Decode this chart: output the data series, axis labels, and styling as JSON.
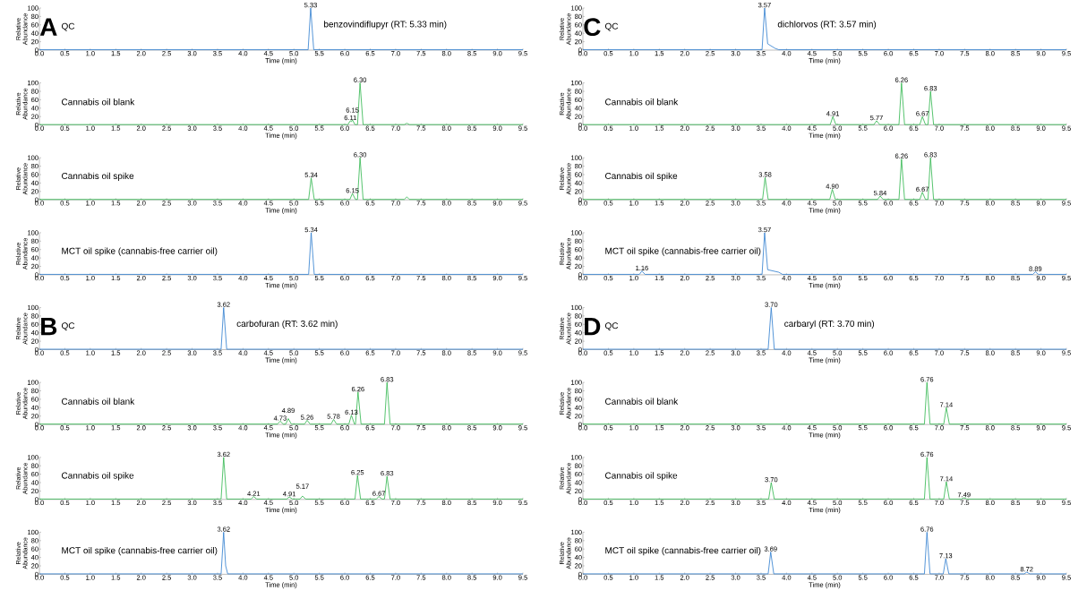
{
  "chart_data": [
    {
      "type": "line",
      "title": "QC",
      "xlabel": "Time (min)",
      "ylabel": "Relative Abundance",
      "color": "#2b7bce",
      "x": [
        0,
        5.28,
        5.33,
        5.39,
        9.5
      ],
      "values": [
        1,
        1,
        100,
        1,
        1
      ],
      "annotations": [
        "A",
        "benzovindiflupyr (RT: 5.33 min)",
        {
          "text": "5.33",
          "x": 5.33,
          "y": 100
        }
      ],
      "xlim": [
        0,
        9.5
      ],
      "ylim": [
        0,
        100
      ],
      "yticks": [
        0,
        20,
        40,
        60,
        80,
        100
      ],
      "xticks": [
        {
          "value": 0,
          "label": "0.0"
        },
        {
          "value": 0.5,
          "label": "0.5"
        },
        {
          "value": 1,
          "label": "1.0"
        },
        {
          "value": 1.5,
          "label": "1.5"
        },
        {
          "value": 2,
          "label": "2.0"
        },
        {
          "value": 2.5,
          "label": "2.5"
        },
        {
          "value": 3,
          "label": "3.0"
        },
        {
          "value": 3.5,
          "label": "3.5"
        },
        {
          "value": 4,
          "label": "4.0"
        },
        {
          "value": 4.5,
          "label": "4.5"
        },
        {
          "value": 5,
          "label": "5.0"
        },
        {
          "value": 5.5,
          "label": "5.5"
        },
        {
          "value": 6,
          "label": "6.0"
        },
        {
          "value": 6.5,
          "label": "6.5"
        },
        {
          "value": 7,
          "label": "7.0"
        },
        {
          "value": 7.5,
          "label": "7.5"
        },
        {
          "value": 8,
          "label": "8.0"
        },
        {
          "value": 8.5,
          "label": "8.5"
        },
        {
          "value": 9,
          "label": "9.0"
        },
        {
          "value": 9.5,
          "label": "9.5"
        }
      ]
    },
    {
      "type": "line",
      "title": "Cannabis oil blank",
      "xlabel": "Time (min)",
      "ylabel": "Relative Abundance",
      "color": "#2cb54a",
      "x": [
        0,
        6.06,
        6.11,
        6.13,
        6.15,
        6.2,
        6.25,
        6.3,
        6.36,
        7.17,
        7.22,
        7.27,
        9.5
      ],
      "values": [
        1,
        1,
        10,
        8,
        12,
        1,
        1,
        100,
        1,
        1,
        4,
        1,
        1
      ],
      "annotations": [
        {
          "text": "6.11",
          "x": 6.11,
          "y": 10
        },
        {
          "text": "6.15",
          "x": 6.15,
          "y": 12
        },
        {
          "text": "6.30",
          "x": 6.3,
          "y": 100
        }
      ],
      "xlim": [
        0,
        9.5
      ],
      "ylim": [
        0,
        100
      ],
      "yticks": [
        0,
        20,
        40,
        60,
        80,
        100
      ],
      "xticks": [
        {
          "value": 0,
          "label": "0.0"
        },
        {
          "value": 0.5,
          "label": "0.5"
        },
        {
          "value": 1,
          "label": "1.0"
        },
        {
          "value": 1.5,
          "label": "1.5"
        },
        {
          "value": 2,
          "label": "2.0"
        },
        {
          "value": 2.5,
          "label": "2.5"
        },
        {
          "value": 3,
          "label": "3.0"
        },
        {
          "value": 3.5,
          "label": "3.5"
        },
        {
          "value": 4,
          "label": "4.0"
        },
        {
          "value": 4.5,
          "label": "4.5"
        },
        {
          "value": 5,
          "label": "5.0"
        },
        {
          "value": 5.5,
          "label": "5.5"
        },
        {
          "value": 6,
          "label": "6.0"
        },
        {
          "value": 6.5,
          "label": "6.5"
        },
        {
          "value": 7,
          "label": "7.0"
        },
        {
          "value": 7.5,
          "label": "7.5"
        },
        {
          "value": 8,
          "label": "8.0"
        },
        {
          "value": 8.5,
          "label": "8.5"
        },
        {
          "value": 9,
          "label": "9.0"
        },
        {
          "value": 9.5,
          "label": "9.5"
        }
      ]
    },
    {
      "type": "line",
      "title": "Cannabis oil spike",
      "xlabel": "Time (min)",
      "ylabel": "Relative Abundance",
      "color": "#2cb54a",
      "x": [
        0,
        5.29,
        5.34,
        5.4,
        6.1,
        6.15,
        6.21,
        6.25,
        6.3,
        6.36,
        7.17,
        7.22,
        7.27,
        9.5
      ],
      "values": [
        1,
        1,
        52,
        1,
        1,
        15,
        1,
        1,
        100,
        1,
        1,
        7,
        1,
        1
      ],
      "annotations": [
        {
          "text": "5.34",
          "x": 5.34,
          "y": 52
        },
        {
          "text": "6.15",
          "x": 6.15,
          "y": 15
        },
        {
          "text": "6.30",
          "x": 6.3,
          "y": 100
        }
      ],
      "xlim": [
        0,
        9.5
      ],
      "ylim": [
        0,
        100
      ],
      "yticks": [
        0,
        20,
        40,
        60,
        80,
        100
      ],
      "xticks": [
        {
          "value": 0,
          "label": "0.0"
        },
        {
          "value": 0.5,
          "label": "0.5"
        },
        {
          "value": 1,
          "label": "1.0"
        },
        {
          "value": 1.5,
          "label": "1.5"
        },
        {
          "value": 2,
          "label": "2.0"
        },
        {
          "value": 2.5,
          "label": "2.5"
        },
        {
          "value": 3,
          "label": "3.0"
        },
        {
          "value": 3.5,
          "label": "3.5"
        },
        {
          "value": 4,
          "label": "4.0"
        },
        {
          "value": 4.5,
          "label": "4.5"
        },
        {
          "value": 5,
          "label": "5.0"
        },
        {
          "value": 5.5,
          "label": "5.5"
        },
        {
          "value": 6,
          "label": "6.0"
        },
        {
          "value": 6.5,
          "label": "6.5"
        },
        {
          "value": 7,
          "label": "7.0"
        },
        {
          "value": 7.5,
          "label": "7.5"
        },
        {
          "value": 8,
          "label": "8.0"
        },
        {
          "value": 8.5,
          "label": "8.5"
        },
        {
          "value": 9,
          "label": "9.0"
        },
        {
          "value": 9.5,
          "label": "9.5"
        }
      ]
    },
    {
      "type": "line",
      "title": "MCT oil spike (cannabis-free carrier oil)",
      "xlabel": "Time (min)",
      "ylabel": "Relative Abundance",
      "color": "#2b7bce",
      "x": [
        0,
        5.29,
        5.34,
        5.4,
        9.5
      ],
      "values": [
        1,
        1,
        100,
        1,
        1
      ],
      "annotations": [
        {
          "text": "5.34",
          "x": 5.34,
          "y": 100
        }
      ],
      "xlim": [
        0,
        9.5
      ],
      "ylim": [
        0,
        100
      ],
      "yticks": [
        0,
        20,
        40,
        60,
        80,
        100
      ],
      "xticks": [
        {
          "value": 0,
          "label": "0.0"
        },
        {
          "value": 0.5,
          "label": "0.5"
        },
        {
          "value": 1,
          "label": "1.0"
        },
        {
          "value": 1.5,
          "label": "1.5"
        },
        {
          "value": 2,
          "label": "2.0"
        },
        {
          "value": 2.5,
          "label": "2.5"
        },
        {
          "value": 3,
          "label": "3.0"
        },
        {
          "value": 3.5,
          "label": "3.5"
        },
        {
          "value": 4,
          "label": "4.0"
        },
        {
          "value": 4.5,
          "label": "4.5"
        },
        {
          "value": 5,
          "label": "5.0"
        },
        {
          "value": 5.5,
          "label": "5.5"
        },
        {
          "value": 6,
          "label": "6.0"
        },
        {
          "value": 6.5,
          "label": "6.5"
        },
        {
          "value": 7,
          "label": "7.0"
        },
        {
          "value": 7.5,
          "label": "7.5"
        },
        {
          "value": 8,
          "label": "8.0"
        },
        {
          "value": 8.5,
          "label": "8.5"
        },
        {
          "value": 9,
          "label": "9.0"
        },
        {
          "value": 9.5,
          "label": "9.5"
        }
      ]
    },
    {
      "type": "line",
      "title": "QC",
      "xlabel": "Time (min)",
      "ylabel": "Relative Abundance",
      "color": "#2b7bce",
      "x": [
        0,
        3.57,
        3.62,
        3.68,
        9.5
      ],
      "values": [
        1,
        1,
        100,
        1,
        1
      ],
      "annotations": [
        "B",
        "carbofuran (RT: 3.62 min)",
        {
          "text": "3.62",
          "x": 3.62,
          "y": 100
        }
      ],
      "xlim": [
        0,
        9.5
      ],
      "ylim": [
        0,
        100
      ],
      "yticks": [
        0,
        20,
        40,
        60,
        80,
        100
      ],
      "xticks": [
        {
          "value": 0,
          "label": "0.0"
        },
        {
          "value": 0.5,
          "label": "0.5"
        },
        {
          "value": 1,
          "label": "1.0"
        },
        {
          "value": 1.5,
          "label": "1.5"
        },
        {
          "value": 2,
          "label": "2.0"
        },
        {
          "value": 2.5,
          "label": "2.5"
        },
        {
          "value": 3,
          "label": "3.0"
        },
        {
          "value": 3.5,
          "label": "3.5"
        },
        {
          "value": 4,
          "label": "4.0"
        },
        {
          "value": 4.5,
          "label": "4.5"
        },
        {
          "value": 5,
          "label": "5.0"
        },
        {
          "value": 5.5,
          "label": "5.5"
        },
        {
          "value": 6,
          "label": "6.0"
        },
        {
          "value": 6.5,
          "label": "6.5"
        },
        {
          "value": 7,
          "label": "7.0"
        },
        {
          "value": 7.5,
          "label": "7.5"
        },
        {
          "value": 8,
          "label": "8.0"
        },
        {
          "value": 8.5,
          "label": "8.5"
        },
        {
          "value": 9,
          "label": "9.0"
        },
        {
          "value": 9.5,
          "label": "9.5"
        }
      ]
    },
    {
      "type": "line",
      "title": "Cannabis oil blank",
      "xlabel": "Time (min)",
      "ylabel": "Relative Abundance",
      "color": "#2cb54a",
      "x": [
        0,
        4.68,
        4.73,
        4.79,
        4.84,
        4.89,
        4.95,
        5.21,
        5.26,
        5.32,
        5.73,
        5.78,
        5.84,
        6.08,
        6.13,
        6.19,
        6.21,
        6.26,
        6.32,
        6.78,
        6.83,
        6.89,
        9.5
      ],
      "values": [
        1,
        1,
        8,
        1,
        1,
        14,
        1,
        1,
        10,
        1,
        1,
        12,
        1,
        1,
        22,
        1,
        1,
        77,
        1,
        1,
        100,
        1,
        1
      ],
      "annotations": [
        {
          "text": "4.73",
          "x": 4.73,
          "y": 8
        },
        {
          "text": "4.89",
          "x": 4.89,
          "y": 14
        },
        {
          "text": "5.26",
          "x": 5.26,
          "y": 10
        },
        {
          "text": "5.78",
          "x": 5.78,
          "y": 12
        },
        {
          "text": "6.13",
          "x": 6.13,
          "y": 22
        },
        {
          "text": "6.26",
          "x": 6.26,
          "y": 77
        },
        {
          "text": "6.83",
          "x": 6.83,
          "y": 100
        }
      ],
      "xlim": [
        0,
        9.5
      ],
      "ylim": [
        0,
        100
      ],
      "yticks": [
        0,
        20,
        40,
        60,
        80,
        100
      ],
      "xticks": [
        {
          "value": 0,
          "label": "0.0"
        },
        {
          "value": 0.5,
          "label": "0.5"
        },
        {
          "value": 1,
          "label": "1.0"
        },
        {
          "value": 1.5,
          "label": "1.5"
        },
        {
          "value": 2,
          "label": "2.0"
        },
        {
          "value": 2.5,
          "label": "2.5"
        },
        {
          "value": 3,
          "label": "3.0"
        },
        {
          "value": 3.5,
          "label": "3.5"
        },
        {
          "value": 4,
          "label": "4.0"
        },
        {
          "value": 4.5,
          "label": "4.5"
        },
        {
          "value": 5,
          "label": "5.0"
        },
        {
          "value": 5.5,
          "label": "5.5"
        },
        {
          "value": 6,
          "label": "6.0"
        },
        {
          "value": 6.5,
          "label": "6.5"
        },
        {
          "value": 7,
          "label": "7.0"
        },
        {
          "value": 7.5,
          "label": "7.5"
        },
        {
          "value": 8,
          "label": "8.0"
        },
        {
          "value": 8.5,
          "label": "8.5"
        },
        {
          "value": 9,
          "label": "9.0"
        },
        {
          "value": 9.5,
          "label": "9.5"
        }
      ]
    },
    {
      "type": "line",
      "title": "Cannabis oil spike",
      "xlabel": "Time (min)",
      "ylabel": "Relative Abundance",
      "color": "#2cb54a",
      "x": [
        0,
        3.57,
        3.62,
        3.68,
        4.16,
        4.21,
        4.27,
        4.86,
        4.91,
        4.97,
        5.12,
        5.17,
        5.23,
        6.2,
        6.25,
        6.31,
        6.62,
        6.67,
        6.73,
        6.78,
        6.83,
        6.89,
        9.5
      ],
      "values": [
        1,
        1,
        100,
        1,
        1,
        7,
        1,
        1,
        6,
        1,
        1,
        8,
        1,
        1,
        57,
        1,
        1,
        7,
        1,
        1,
        55,
        1,
        1
      ],
      "annotations": [
        {
          "text": "3.62",
          "x": 3.62,
          "y": 100
        },
        {
          "text": "4.21",
          "x": 4.21,
          "y": 7
        },
        {
          "text": "4.91",
          "x": 4.91,
          "y": 6
        },
        {
          "text": "5.17",
          "x": 5.17,
          "y": 8
        },
        {
          "text": "6.25",
          "x": 6.25,
          "y": 57
        },
        {
          "text": "6.67",
          "x": 6.67,
          "y": 7
        },
        {
          "text": "6.83",
          "x": 6.83,
          "y": 55
        }
      ],
      "xlim": [
        0,
        9.5
      ],
      "ylim": [
        0,
        100
      ],
      "yticks": [
        0,
        20,
        40,
        60,
        80,
        100
      ],
      "xticks": [
        {
          "value": 0,
          "label": "0.0"
        },
        {
          "value": 0.5,
          "label": "0.5"
        },
        {
          "value": 1,
          "label": "1.0"
        },
        {
          "value": 1.5,
          "label": "1.5"
        },
        {
          "value": 2,
          "label": "2.0"
        },
        {
          "value": 2.5,
          "label": "2.5"
        },
        {
          "value": 3,
          "label": "3.0"
        },
        {
          "value": 3.5,
          "label": "3.5"
        },
        {
          "value": 4,
          "label": "4.0"
        },
        {
          "value": 4.5,
          "label": "4.5"
        },
        {
          "value": 5,
          "label": "5.0"
        },
        {
          "value": 5.5,
          "label": "5.5"
        },
        {
          "value": 6,
          "label": "6.0"
        },
        {
          "value": 6.5,
          "label": "6.5"
        },
        {
          "value": 7,
          "label": "7.0"
        },
        {
          "value": 7.5,
          "label": "7.5"
        },
        {
          "value": 8,
          "label": "8.0"
        },
        {
          "value": 8.5,
          "label": "8.5"
        },
        {
          "value": 9,
          "label": "9.0"
        },
        {
          "value": 9.5,
          "label": "9.5"
        }
      ]
    },
    {
      "type": "line",
      "title": "MCT oil spike (cannabis-free carrier oil)",
      "xlabel": "Time (min)",
      "ylabel": "Relative Abundance",
      "color": "#2b7bce",
      "x": [
        0,
        3.57,
        3.62,
        3.66,
        3.7,
        9.5
      ],
      "values": [
        1,
        1,
        100,
        20,
        1,
        1
      ],
      "annotations": [
        {
          "text": "3.62",
          "x": 3.62,
          "y": 100
        }
      ],
      "xlim": [
        0,
        9.5
      ],
      "ylim": [
        0,
        100
      ],
      "yticks": [
        0,
        20,
        40,
        60,
        80,
        100
      ],
      "xticks": [
        {
          "value": 0,
          "label": "0.0"
        },
        {
          "value": 0.5,
          "label": "0.5"
        },
        {
          "value": 1,
          "label": "1.0"
        },
        {
          "value": 1.5,
          "label": "1.5"
        },
        {
          "value": 2,
          "label": "2.0"
        },
        {
          "value": 2.5,
          "label": "2.5"
        },
        {
          "value": 3,
          "label": "3.0"
        },
        {
          "value": 3.5,
          "label": "3.5"
        },
        {
          "value": 4,
          "label": "4.0"
        },
        {
          "value": 4.5,
          "label": "4.5"
        },
        {
          "value": 5,
          "label": "5.0"
        },
        {
          "value": 5.5,
          "label": "5.5"
        },
        {
          "value": 6,
          "label": "6.0"
        },
        {
          "value": 6.5,
          "label": "6.5"
        },
        {
          "value": 7,
          "label": "7.0"
        },
        {
          "value": 7.5,
          "label": "7.5"
        },
        {
          "value": 8,
          "label": "8.0"
        },
        {
          "value": 8.5,
          "label": "8.5"
        },
        {
          "value": 9,
          "label": "9.0"
        },
        {
          "value": 9.5,
          "label": "9.5"
        }
      ]
    },
    {
      "type": "line",
      "title": "QC",
      "xlabel": "Time (min)",
      "ylabel": "Relative Abundance",
      "color": "#2b7bce",
      "x": [
        0,
        3.52,
        3.57,
        3.63,
        3.78,
        3.85,
        9.5
      ],
      "values": [
        1,
        1,
        100,
        15,
        4,
        1,
        1
      ],
      "annotations": [
        "C",
        "dichlorvos (RT: 3.57 min)",
        {
          "text": "3.57",
          "x": 3.57,
          "y": 100
        }
      ],
      "xlim": [
        0,
        9.5
      ],
      "ylim": [
        0,
        100
      ],
      "yticks": [
        0,
        20,
        40,
        60,
        80,
        100
      ],
      "xticks": [
        {
          "value": 0,
          "label": "0.0"
        },
        {
          "value": 0.5,
          "label": "0.5"
        },
        {
          "value": 1,
          "label": "1.0"
        },
        {
          "value": 1.5,
          "label": "1.5"
        },
        {
          "value": 2,
          "label": "2.0"
        },
        {
          "value": 2.5,
          "label": "2.5"
        },
        {
          "value": 3,
          "label": "3.0"
        },
        {
          "value": 3.5,
          "label": "3.5"
        },
        {
          "value": 4,
          "label": "4.0"
        },
        {
          "value": 4.5,
          "label": "4.5"
        },
        {
          "value": 5,
          "label": "5.0"
        },
        {
          "value": 5.5,
          "label": "5.5"
        },
        {
          "value": 6,
          "label": "6.0"
        },
        {
          "value": 6.5,
          "label": "6.5"
        },
        {
          "value": 7,
          "label": "7.0"
        },
        {
          "value": 7.5,
          "label": "7.5"
        },
        {
          "value": 8,
          "label": "8.0"
        },
        {
          "value": 8.5,
          "label": "8.5"
        },
        {
          "value": 9,
          "label": "9.0"
        },
        {
          "value": 9.5,
          "label": "9.5"
        }
      ]
    },
    {
      "type": "line",
      "title": "Cannabis oil blank",
      "xlabel": "Time (min)",
      "ylabel": "Relative Abundance",
      "color": "#2cb54a",
      "x": [
        0,
        4.86,
        4.91,
        4.97,
        5.72,
        5.77,
        5.83,
        6.21,
        6.26,
        6.32,
        6.62,
        6.67,
        6.73,
        6.78,
        6.83,
        6.89,
        9.5
      ],
      "values": [
        1,
        1,
        20,
        1,
        1,
        10,
        1,
        1,
        100,
        1,
        1,
        20,
        1,
        1,
        80,
        1,
        1
      ],
      "annotations": [
        {
          "text": "4.91",
          "x": 4.91,
          "y": 20
        },
        {
          "text": "5.77",
          "x": 5.77,
          "y": 10
        },
        {
          "text": "6.26",
          "x": 6.26,
          "y": 100
        },
        {
          "text": "6.67",
          "x": 6.67,
          "y": 20
        },
        {
          "text": "6.83",
          "x": 6.83,
          "y": 80
        }
      ],
      "xlim": [
        0,
        9.5
      ],
      "ylim": [
        0,
        100
      ],
      "yticks": [
        0,
        20,
        40,
        60,
        80,
        100
      ],
      "xticks": [
        {
          "value": 0,
          "label": "0.0"
        },
        {
          "value": 0.5,
          "label": "0.5"
        },
        {
          "value": 1,
          "label": "1.0"
        },
        {
          "value": 1.5,
          "label": "1.5"
        },
        {
          "value": 2,
          "label": "2.0"
        },
        {
          "value": 2.5,
          "label": "2.5"
        },
        {
          "value": 3,
          "label": "3.0"
        },
        {
          "value": 3.5,
          "label": "3.5"
        },
        {
          "value": 4,
          "label": "4.0"
        },
        {
          "value": 4.5,
          "label": "4.5"
        },
        {
          "value": 5,
          "label": "5.0"
        },
        {
          "value": 5.5,
          "label": "5.5"
        },
        {
          "value": 6,
          "label": "6.0"
        },
        {
          "value": 6.5,
          "label": "6.5"
        },
        {
          "value": 7,
          "label": "7.0"
        },
        {
          "value": 7.5,
          "label": "7.5"
        },
        {
          "value": 8,
          "label": "8.0"
        },
        {
          "value": 8.5,
          "label": "8.5"
        },
        {
          "value": 9,
          "label": "9.0"
        },
        {
          "value": 9.5,
          "label": "9.5"
        }
      ]
    },
    {
      "type": "line",
      "title": "Cannabis oil spike",
      "xlabel": "Time (min)",
      "ylabel": "Relative Abundance",
      "color": "#2cb54a",
      "x": [
        0,
        3.53,
        3.58,
        3.64,
        4.85,
        4.9,
        4.96,
        5.79,
        5.84,
        5.9,
        6.21,
        6.26,
        6.32,
        6.62,
        6.67,
        6.73,
        6.78,
        6.83,
        6.89,
        9.5
      ],
      "values": [
        1,
        1,
        53,
        1,
        1,
        25,
        1,
        1,
        9,
        1,
        1,
        97,
        1,
        1,
        18,
        1,
        1,
        100,
        1,
        1
      ],
      "annotations": [
        {
          "text": "3.58",
          "x": 3.58,
          "y": 53
        },
        {
          "text": "4.90",
          "x": 4.9,
          "y": 25
        },
        {
          "text": "5.84",
          "x": 5.84,
          "y": 9
        },
        {
          "text": "6.26",
          "x": 6.26,
          "y": 97
        },
        {
          "text": "6.67",
          "x": 6.67,
          "y": 18
        },
        {
          "text": "6.83",
          "x": 6.83,
          "y": 100
        }
      ],
      "xlim": [
        0,
        9.5
      ],
      "ylim": [
        0,
        100
      ],
      "yticks": [
        0,
        20,
        40,
        60,
        80,
        100
      ],
      "xticks": [
        {
          "value": 0,
          "label": "0.0"
        },
        {
          "value": 0.5,
          "label": "0.5"
        },
        {
          "value": 1,
          "label": "1.0"
        },
        {
          "value": 1.5,
          "label": "1.5"
        },
        {
          "value": 2,
          "label": "2.0"
        },
        {
          "value": 2.5,
          "label": "2.5"
        },
        {
          "value": 3,
          "label": "3.0"
        },
        {
          "value": 3.5,
          "label": "3.5"
        },
        {
          "value": 4,
          "label": "4.0"
        },
        {
          "value": 4.5,
          "label": "4.5"
        },
        {
          "value": 5,
          "label": "5.0"
        },
        {
          "value": 5.5,
          "label": "5.5"
        },
        {
          "value": 6,
          "label": "6.0"
        },
        {
          "value": 6.5,
          "label": "6.5"
        },
        {
          "value": 7,
          "label": "7.0"
        },
        {
          "value": 7.5,
          "label": "7.5"
        },
        {
          "value": 8,
          "label": "8.0"
        },
        {
          "value": 8.5,
          "label": "8.5"
        },
        {
          "value": 9,
          "label": "9.0"
        },
        {
          "value": 9.5,
          "label": "9.5"
        }
      ]
    },
    {
      "type": "line",
      "title": "MCT oil spike (cannabis-free carrier oil)",
      "xlabel": "Time (min)",
      "ylabel": "Relative Abundance",
      "color": "#2b7bce",
      "x": [
        0,
        1.11,
        1.16,
        1.22,
        3.52,
        3.57,
        3.63,
        3.85,
        3.92,
        8.84,
        8.89,
        8.95,
        9.5
      ],
      "values": [
        1,
        1,
        9,
        1,
        1,
        100,
        12,
        6,
        1,
        1,
        7,
        1,
        1
      ],
      "annotations": [
        {
          "text": "1.16",
          "x": 1.16,
          "y": 9
        },
        {
          "text": "3.57",
          "x": 3.57,
          "y": 100
        },
        {
          "text": "8.89",
          "x": 8.89,
          "y": 7
        }
      ],
      "xlim": [
        0,
        9.5
      ],
      "ylim": [
        0,
        100
      ],
      "yticks": [
        0,
        20,
        40,
        60,
        80,
        100
      ],
      "xticks": [
        {
          "value": 0,
          "label": "0.0"
        },
        {
          "value": 0.5,
          "label": "0.5"
        },
        {
          "value": 1,
          "label": "1.0"
        },
        {
          "value": 1.5,
          "label": "1.5"
        },
        {
          "value": 2,
          "label": "2.0"
        },
        {
          "value": 2.5,
          "label": "2.5"
        },
        {
          "value": 3,
          "label": "3.0"
        },
        {
          "value": 3.5,
          "label": "3.5"
        },
        {
          "value": 4,
          "label": "4.0"
        },
        {
          "value": 4.5,
          "label": "4.5"
        },
        {
          "value": 5,
          "label": "5.0"
        },
        {
          "value": 5.5,
          "label": "5.5"
        },
        {
          "value": 6,
          "label": "6.0"
        },
        {
          "value": 6.5,
          "label": "6.5"
        },
        {
          "value": 7,
          "label": "7.0"
        },
        {
          "value": 7.5,
          "label": "7.5"
        },
        {
          "value": 8,
          "label": "8.0"
        },
        {
          "value": 8.5,
          "label": "8.5"
        },
        {
          "value": 9,
          "label": "9.0"
        },
        {
          "value": 9.5,
          "label": "9.5"
        }
      ]
    },
    {
      "type": "line",
      "title": "QC",
      "xlabel": "Time (min)",
      "ylabel": "Relative Abundance",
      "color": "#2b7bce",
      "x": [
        0,
        3.64,
        3.7,
        3.76,
        9.5
      ],
      "values": [
        1,
        1,
        100,
        1,
        1
      ],
      "annotations": [
        "D",
        "carbaryl (RT: 3.70 min)",
        {
          "text": "3.70",
          "x": 3.7,
          "y": 100
        }
      ],
      "xlim": [
        0,
        9.5
      ],
      "ylim": [
        0,
        100
      ],
      "yticks": [
        0,
        20,
        40,
        60,
        80,
        100
      ],
      "xticks": [
        {
          "value": 0,
          "label": "0.0"
        },
        {
          "value": 0.5,
          "label": "0.5"
        },
        {
          "value": 1,
          "label": "1.0"
        },
        {
          "value": 1.5,
          "label": "1.5"
        },
        {
          "value": 2,
          "label": "2.0"
        },
        {
          "value": 2.5,
          "label": "2.5"
        },
        {
          "value": 3,
          "label": "3.0"
        },
        {
          "value": 3.5,
          "label": "3.5"
        },
        {
          "value": 4,
          "label": "4.0"
        },
        {
          "value": 4.5,
          "label": "4.5"
        },
        {
          "value": 5,
          "label": "5.0"
        },
        {
          "value": 5.5,
          "label": "5.5"
        },
        {
          "value": 6,
          "label": "6.0"
        },
        {
          "value": 6.5,
          "label": "6.5"
        },
        {
          "value": 7,
          "label": "7.0"
        },
        {
          "value": 7.5,
          "label": "7.5"
        },
        {
          "value": 8,
          "label": "8.0"
        },
        {
          "value": 8.5,
          "label": "8.5"
        },
        {
          "value": 9,
          "label": "9.0"
        },
        {
          "value": 9.5,
          "label": "9.5"
        }
      ]
    },
    {
      "type": "line",
      "title": "Cannabis oil blank",
      "xlabel": "Time (min)",
      "ylabel": "Relative Abundance",
      "color": "#2cb54a",
      "x": [
        0,
        6.71,
        6.76,
        6.82,
        7.09,
        7.14,
        7.2,
        9.5
      ],
      "values": [
        1,
        1,
        100,
        1,
        1,
        40,
        1,
        1
      ],
      "annotations": [
        {
          "text": "6.76",
          "x": 6.76,
          "y": 100
        },
        {
          "text": "7.14",
          "x": 7.14,
          "y": 40
        }
      ],
      "xlim": [
        0,
        9.5
      ],
      "ylim": [
        0,
        100
      ],
      "yticks": [
        0,
        20,
        40,
        60,
        80,
        100
      ],
      "xticks": [
        {
          "value": 0,
          "label": "0.0"
        },
        {
          "value": 0.5,
          "label": "0.5"
        },
        {
          "value": 1,
          "label": "1.0"
        },
        {
          "value": 1.5,
          "label": "1.5"
        },
        {
          "value": 2,
          "label": "2.0"
        },
        {
          "value": 2.5,
          "label": "2.5"
        },
        {
          "value": 3,
          "label": "3.0"
        },
        {
          "value": 3.5,
          "label": "3.5"
        },
        {
          "value": 4,
          "label": "4.0"
        },
        {
          "value": 4.5,
          "label": "4.5"
        },
        {
          "value": 5,
          "label": "5.0"
        },
        {
          "value": 5.5,
          "label": "5.5"
        },
        {
          "value": 6,
          "label": "6.0"
        },
        {
          "value": 6.5,
          "label": "6.5"
        },
        {
          "value": 7,
          "label": "7.0"
        },
        {
          "value": 7.5,
          "label": "7.5"
        },
        {
          "value": 8,
          "label": "8.0"
        },
        {
          "value": 8.5,
          "label": "8.5"
        },
        {
          "value": 9,
          "label": "9.0"
        },
        {
          "value": 9.5,
          "label": "9.5"
        }
      ]
    },
    {
      "type": "line",
      "title": "Cannabis oil spike",
      "xlabel": "Time (min)",
      "ylabel": "Relative Abundance",
      "color": "#2cb54a",
      "x": [
        0,
        3.65,
        3.7,
        3.76,
        6.71,
        6.76,
        6.82,
        7.09,
        7.14,
        7.2,
        7.44,
        7.49,
        7.54,
        9.5
      ],
      "values": [
        1,
        1,
        40,
        1,
        1,
        100,
        1,
        1,
        42,
        1,
        1,
        4,
        1,
        1
      ],
      "annotations": [
        {
          "text": "3.70",
          "x": 3.7,
          "y": 40
        },
        {
          "text": "6.76",
          "x": 6.76,
          "y": 100
        },
        {
          "text": "7.14",
          "x": 7.14,
          "y": 42
        },
        {
          "text": "7.49",
          "x": 7.49,
          "y": 4
        }
      ],
      "xlim": [
        0,
        9.5
      ],
      "ylim": [
        0,
        100
      ],
      "yticks": [
        0,
        20,
        40,
        60,
        80,
        100
      ],
      "xticks": [
        {
          "value": 0,
          "label": "0.0"
        },
        {
          "value": 0.5,
          "label": "0.5"
        },
        {
          "value": 1,
          "label": "1.0"
        },
        {
          "value": 1.5,
          "label": "1.5"
        },
        {
          "value": 2,
          "label": "2.0"
        },
        {
          "value": 2.5,
          "label": "2.5"
        },
        {
          "value": 3,
          "label": "3.0"
        },
        {
          "value": 3.5,
          "label": "3.5"
        },
        {
          "value": 4,
          "label": "4.0"
        },
        {
          "value": 4.5,
          "label": "4.5"
        },
        {
          "value": 5,
          "label": "5.0"
        },
        {
          "value": 5.5,
          "label": "5.5"
        },
        {
          "value": 6,
          "label": "6.0"
        },
        {
          "value": 6.5,
          "label": "6.5"
        },
        {
          "value": 7,
          "label": "7.0"
        },
        {
          "value": 7.5,
          "label": "7.5"
        },
        {
          "value": 8,
          "label": "8.0"
        },
        {
          "value": 8.5,
          "label": "8.5"
        },
        {
          "value": 9,
          "label": "9.0"
        },
        {
          "value": 9.5,
          "label": "9.5"
        }
      ]
    },
    {
      "type": "line",
      "title": "MCT oil spike (cannabis-free carrier oil)",
      "xlabel": "Time (min)",
      "ylabel": "Relative Abundance",
      "color": "#2b7bce",
      "x": [
        0,
        3.64,
        3.69,
        3.75,
        6.71,
        6.76,
        6.82,
        7.08,
        7.13,
        7.19,
        8.67,
        8.72,
        8.78,
        9.5
      ],
      "values": [
        1,
        1,
        53,
        1,
        1,
        100,
        1,
        1,
        37,
        1,
        1,
        5,
        1,
        1
      ],
      "annotations": [
        {
          "text": "3.69",
          "x": 3.69,
          "y": 53
        },
        {
          "text": "6.76",
          "x": 6.76,
          "y": 100
        },
        {
          "text": "7.13",
          "x": 7.13,
          "y": 37
        },
        {
          "text": "8.72",
          "x": 8.72,
          "y": 5
        }
      ],
      "xlim": [
        0,
        9.5
      ],
      "ylim": [
        0,
        100
      ],
      "yticks": [
        0,
        20,
        40,
        60,
        80,
        100
      ],
      "xticks": [
        {
          "value": 0,
          "label": "0.0"
        },
        {
          "value": 0.5,
          "label": "0.5"
        },
        {
          "value": 1,
          "label": "1.0"
        },
        {
          "value": 1.5,
          "label": "1.5"
        },
        {
          "value": 2,
          "label": "2.0"
        },
        {
          "value": 2.5,
          "label": "2.5"
        },
        {
          "value": 3,
          "label": "3.0"
        },
        {
          "value": 3.5,
          "label": "3.5"
        },
        {
          "value": 4,
          "label": "4.0"
        },
        {
          "value": 4.5,
          "label": "4.5"
        },
        {
          "value": 5,
          "label": "5.0"
        },
        {
          "value": 5.5,
          "label": "5.5"
        },
        {
          "value": 6,
          "label": "6.0"
        },
        {
          "value": 6.5,
          "label": "6.5"
        },
        {
          "value": 7,
          "label": "7.0"
        },
        {
          "value": 7.5,
          "label": "7.5"
        },
        {
          "value": 8,
          "label": "8.0"
        },
        {
          "value": 8.5,
          "label": "8.5"
        },
        {
          "value": 9,
          "label": "9.0"
        },
        {
          "value": 9.5,
          "label": "9.5"
        }
      ]
    }
  ]
}
